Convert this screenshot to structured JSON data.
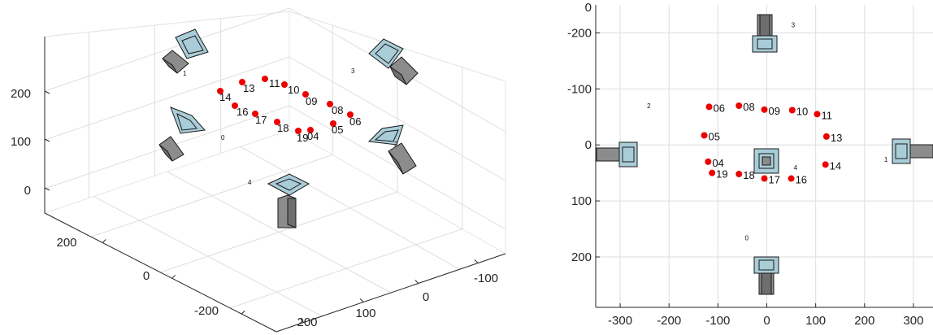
{
  "chart_data": [
    {
      "type": "scatter",
      "view": "3d",
      "title": "",
      "xlabel": "",
      "ylabel": "",
      "zlabel": "",
      "x_ticks": [
        "-100",
        "0",
        "100",
        "200"
      ],
      "y_ticks": [
        "200",
        "0",
        "-200"
      ],
      "z_ticks": [
        "0",
        "100",
        "200"
      ],
      "grid": true,
      "camera_labels": [
        "0",
        "1",
        "2",
        "3",
        "4"
      ],
      "point_labels": [
        "04",
        "05",
        "06",
        "08",
        "09",
        "10",
        "11",
        "13",
        "14",
        "16",
        "17",
        "18",
        "19"
      ],
      "point_color": "#ee0000",
      "camera_body_color": "#8c8c8c",
      "camera_lens_color": "#a9cdd8"
    },
    {
      "type": "scatter",
      "view": "top",
      "title": "",
      "xlabel": "",
      "ylabel": "",
      "xlim": [
        -350,
        340
      ],
      "ylim": [
        -250,
        290
      ],
      "y_reversed": true,
      "x_ticks": [
        -300,
        -200,
        -100,
        0,
        100,
        200,
        300
      ],
      "y_ticks": [
        -200,
        -100,
        0,
        100,
        200
      ],
      "grid": true,
      "point_color": "#ee0000",
      "points": [
        {
          "label": "06",
          "x": -118,
          "y": -68
        },
        {
          "label": "08",
          "x": -57,
          "y": -70
        },
        {
          "label": "09",
          "x": -5,
          "y": -63
        },
        {
          "label": "10",
          "x": 52,
          "y": -62
        },
        {
          "label": "11",
          "x": 103,
          "y": -55
        },
        {
          "label": "05",
          "x": -128,
          "y": -17
        },
        {
          "label": "13",
          "x": 122,
          "y": -15
        },
        {
          "label": "04",
          "x": -120,
          "y": 30
        },
        {
          "label": "14",
          "x": 120,
          "y": 35
        },
        {
          "label": "19",
          "x": -112,
          "y": 50
        },
        {
          "label": "18",
          "x": -57,
          "y": 52
        },
        {
          "label": "17",
          "x": -5,
          "y": 60
        },
        {
          "label": "16",
          "x": 50,
          "y": 60
        }
      ],
      "cameras": [
        {
          "label": "0",
          "x": -45,
          "y": 170
        },
        {
          "label": "1",
          "x": 240,
          "y": 30
        },
        {
          "label": "2",
          "x": -245,
          "y": -66
        },
        {
          "label": "3",
          "x": 50,
          "y": -210
        },
        {
          "label": "4",
          "x": 55,
          "y": 45
        }
      ]
    }
  ]
}
